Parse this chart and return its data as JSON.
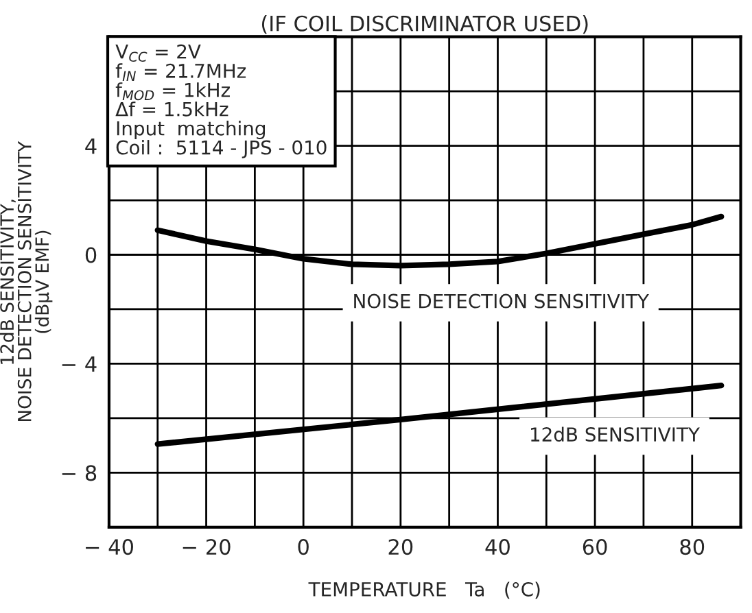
{
  "chart_data": {
    "type": "line",
    "title": "(IF COIL DISCRIMINATOR USED)",
    "xlabel": "TEMPERATURE   Ta   (°C)",
    "ylabel": "12dB SENSITIVITY,\nNOISE DETECTION SENSITIVITY\n(dBμV EMF)",
    "x": [
      -30,
      -20,
      -10,
      0,
      10,
      20,
      30,
      40,
      50,
      60,
      70,
      80,
      86
    ],
    "series": [
      {
        "name": "NOISE DETECTION SENSITIVITY",
        "color": "#000000",
        "values": [
          0.9,
          0.5,
          0.2,
          -0.15,
          -0.35,
          -0.4,
          -0.35,
          -0.25,
          0.05,
          0.4,
          0.75,
          1.1,
          1.4
        ]
      },
      {
        "name": "12dB SENSITIVITY",
        "color": "#000000",
        "x": [
          -30,
          20,
          86
        ],
        "values": [
          -6.95,
          -6.05,
          -4.8
        ]
      }
    ],
    "annotations": [
      "V$_{CC}$ = 2V\nf$_{IN}$ = 21.7MHz\nf$_{MOD}$ = 1kHz\nΔf = 1.5kHz\nInput  matching\nCoil :  5114 - JPS - 010"
    ],
    "xlim": [
      -40,
      90
    ],
    "ylim": [
      -10,
      8
    ],
    "xticks": [
      -40,
      {
        "value": -30,
        "label": null
      },
      -20,
      {
        "value": -10,
        "label": null
      },
      0,
      {
        "value": 10,
        "label": null
      },
      20,
      {
        "value": 30,
        "label": null
      },
      40,
      {
        "value": 50,
        "label": null
      },
      60,
      {
        "value": 70,
        "label": null
      },
      80
    ],
    "yticks": [
      -8,
      {
        "value": -6,
        "label": null
      },
      -4,
      {
        "value": -2,
        "label": null
      },
      0,
      {
        "value": 2,
        "label": null
      },
      4,
      {
        "value": 6,
        "label": null
      }
    ],
    "grid": true,
    "legend": false,
    "marker": "none",
    "line_style": "solid"
  }
}
